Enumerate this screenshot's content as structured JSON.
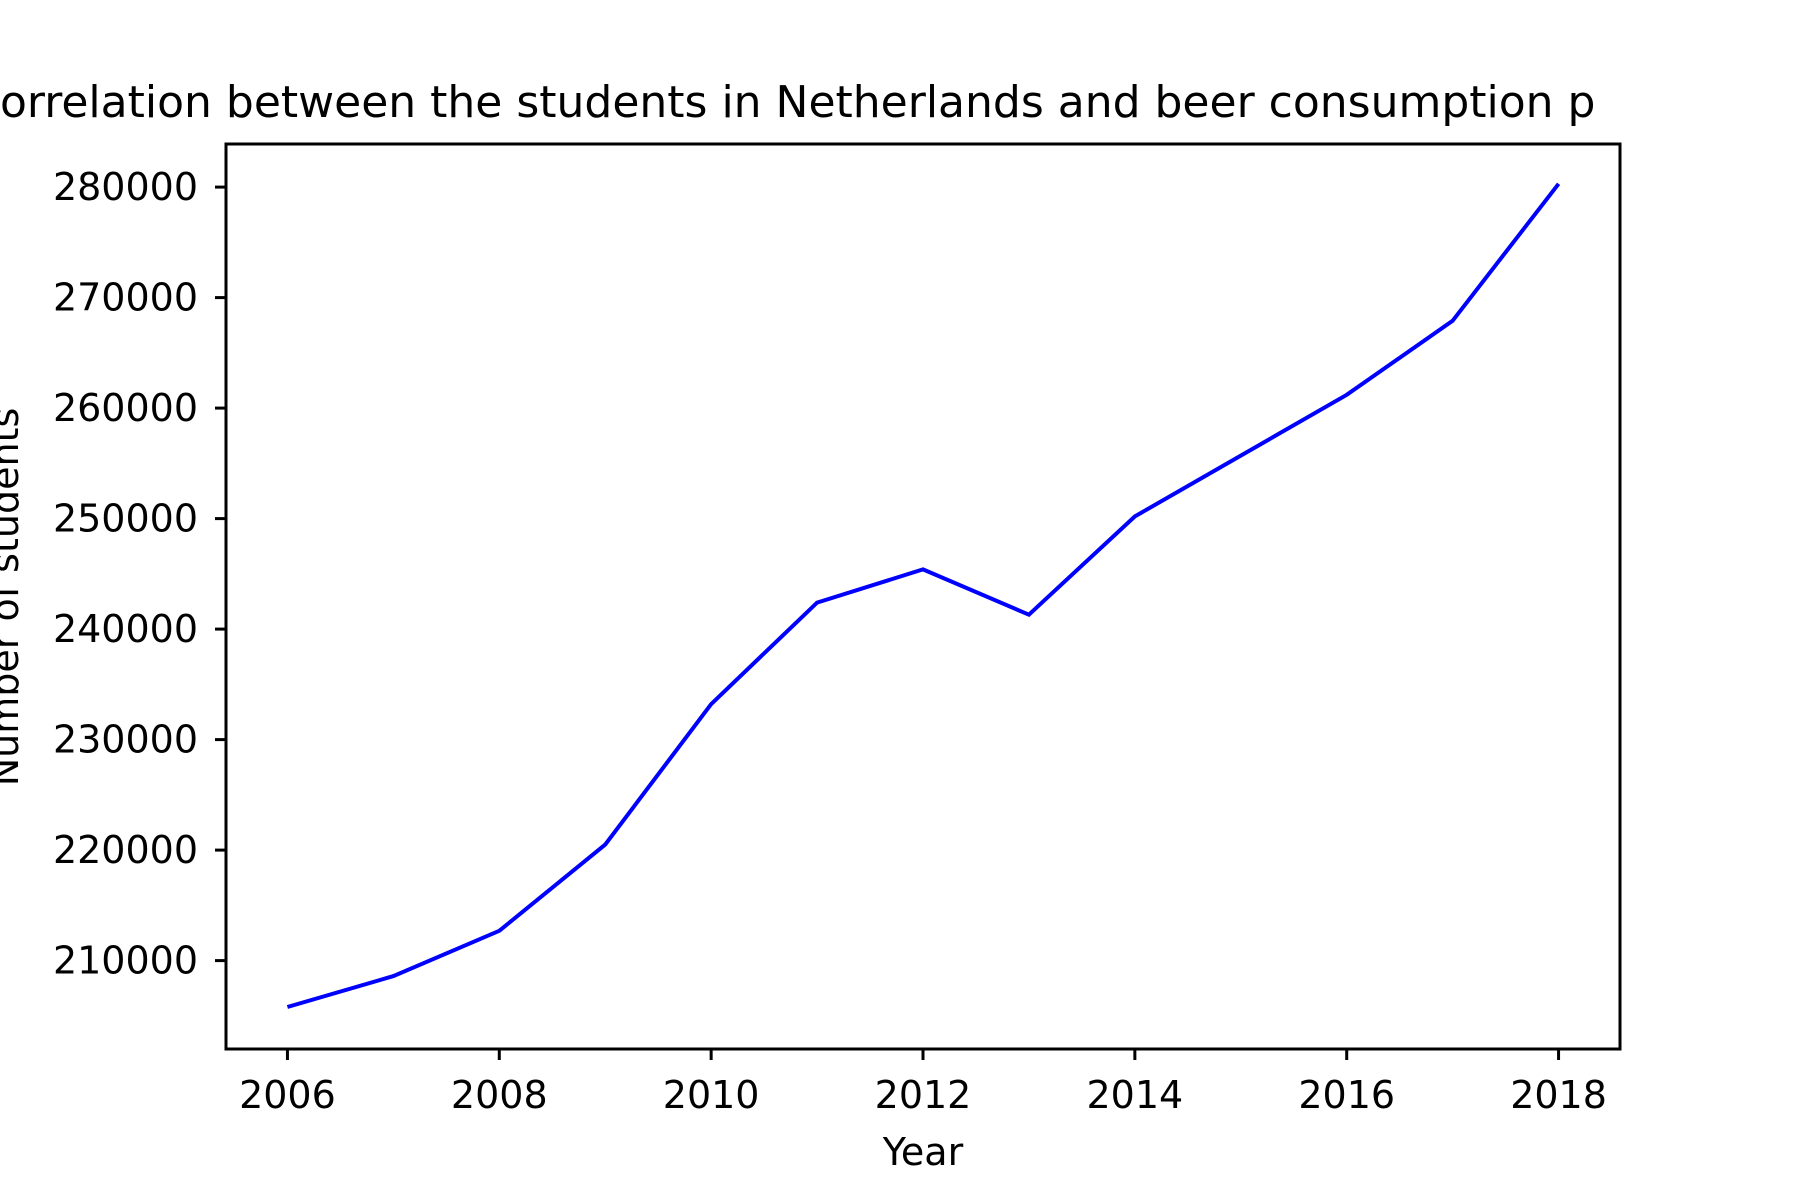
{
  "chart_data": {
    "type": "line",
    "title": "orrelation between the students in Netherlands and beer consumption p",
    "xlabel": "Year",
    "ylabel": "Number of students",
    "xlim": [
      2005.42,
      2018.58
    ],
    "ylim": [
      202000,
      283900
    ],
    "x_ticks": [
      2006,
      2008,
      2010,
      2012,
      2014,
      2016,
      2018
    ],
    "y_ticks": [
      210000,
      220000,
      230000,
      240000,
      250000,
      260000,
      270000,
      280000
    ],
    "grid": false,
    "line_color": "#0000ff",
    "series": [
      {
        "x": [
          2006,
          2007,
          2008,
          2009,
          2010,
          2011,
          2012,
          2013,
          2014,
          2015,
          2016,
          2017,
          2018
        ],
        "values": [
          205800,
          208600,
          212700,
          220500,
          233200,
          242400,
          245400,
          241300,
          250200,
          255700,
          261200,
          267900,
          280300
        ]
      }
    ]
  }
}
